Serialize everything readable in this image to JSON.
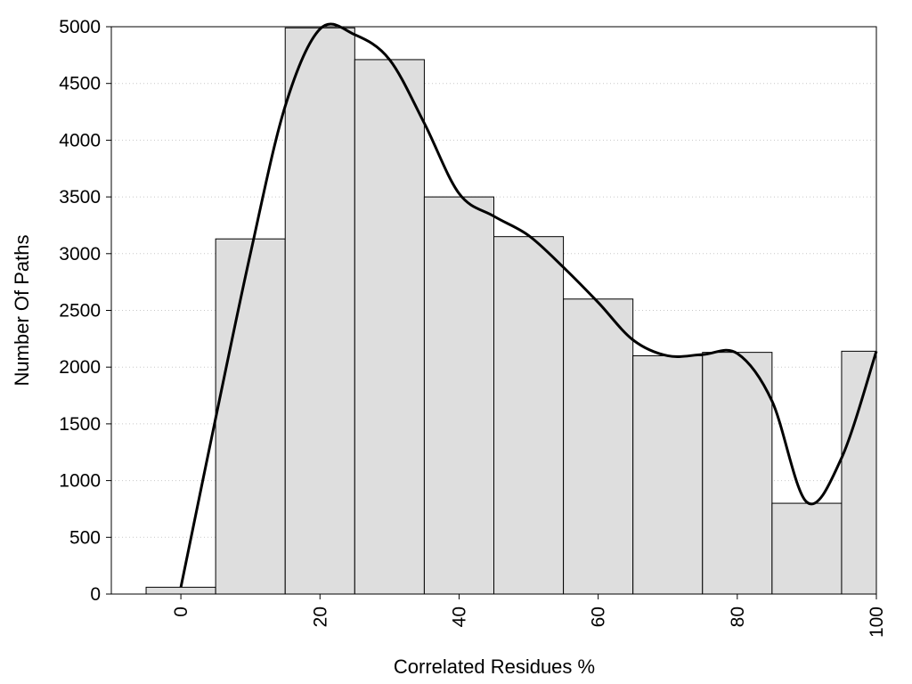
{
  "chart_data": {
    "type": "bar",
    "title": "",
    "xlabel": "Correlated Residues %",
    "ylabel": "Number Of Paths",
    "xlim": [
      -10,
      100
    ],
    "ylim": [
      0,
      5000
    ],
    "x_ticks": [
      0,
      20,
      40,
      60,
      80,
      100
    ],
    "y_ticks": [
      0,
      500,
      1000,
      1500,
      2000,
      2500,
      3000,
      3500,
      4000,
      4500,
      5000
    ],
    "bin_width": 10,
    "bins": [
      {
        "x": 0,
        "value": 60
      },
      {
        "x": 10,
        "value": 3130
      },
      {
        "x": 20,
        "value": 4990
      },
      {
        "x": 30,
        "value": 4710
      },
      {
        "x": 40,
        "value": 3500
      },
      {
        "x": 50,
        "value": 3150
      },
      {
        "x": 60,
        "value": 2600
      },
      {
        "x": 70,
        "value": 2100
      },
      {
        "x": 80,
        "value": 2130
      },
      {
        "x": 90,
        "value": 800
      },
      {
        "x": 100,
        "value": 2140
      }
    ],
    "curve": {
      "type": "line",
      "smooth": true,
      "x": [
        0,
        5,
        10,
        15,
        20,
        25,
        30,
        35,
        40,
        45,
        50,
        55,
        60,
        65,
        70,
        75,
        80,
        85,
        90,
        95,
        100
      ],
      "y": [
        60,
        1550,
        3000,
        4300,
        4980,
        4930,
        4710,
        4150,
        3530,
        3330,
        3160,
        2880,
        2570,
        2240,
        2100,
        2110,
        2120,
        1700,
        810,
        1200,
        2140
      ]
    },
    "grid": {
      "y": true,
      "x": false,
      "style": "dotted"
    },
    "legend": "none"
  }
}
